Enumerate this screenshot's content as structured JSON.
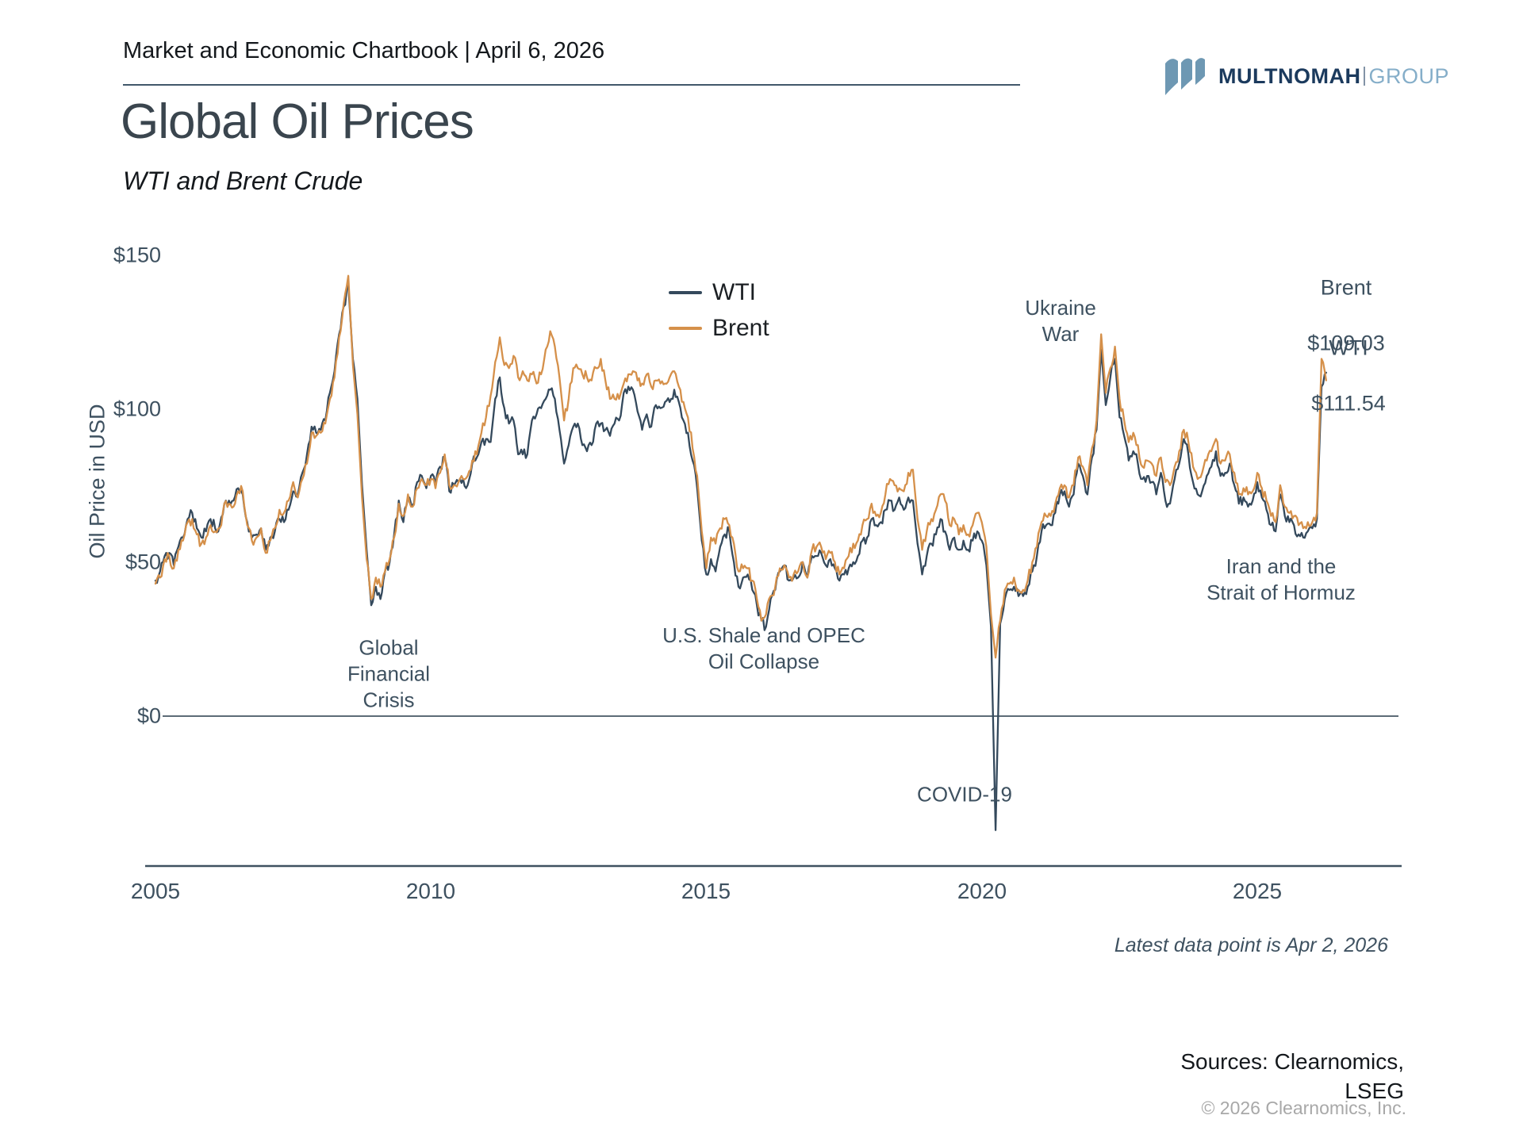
{
  "header": {
    "chartbook_label": "Market and Economic Chartbook | April 6, 2026"
  },
  "logo": {
    "name_bold": "MULTNOMAH",
    "name_light": "GROUP",
    "icon": "three-wave-strokes",
    "brand_navy": "#1b3a5d",
    "brand_steel_blue": "#6e98b3"
  },
  "title": "Global Oil Prices",
  "subtitle": "WTI and Brent Crude",
  "footnote": "Latest data point is Apr 2, 2026",
  "footer": {
    "sources_line1": "Sources: Clearnomics,",
    "sources_line2": "LSEG",
    "copyright": "© 2026 Clearnomics, Inc."
  },
  "chart_data": {
    "type": "line",
    "title": "Global Oil Prices",
    "subtitle": "WTI and Brent Crude",
    "ylabel": "Oil Price in USD",
    "xlabel": "",
    "grid": false,
    "legend_position": "top-center",
    "ylim": [
      -45,
      155
    ],
    "y_tick_values": [
      0,
      50,
      100,
      150
    ],
    "y_tick_labels": [
      "$0",
      "$50",
      "$100",
      "$150"
    ],
    "x_tick_labels": [
      "2005",
      "2010",
      "2015",
      "2020",
      "2025"
    ],
    "x_start": 2005.0,
    "x_step_years": 0.0833333,
    "frequency": "monthly (last point Apr 2, 2026)",
    "series": [
      {
        "name": "WTI",
        "color": "#34495c",
        "end_value": 111.54,
        "values": [
          44,
          47,
          52,
          53,
          49,
          55,
          58,
          64,
          66,
          61,
          58,
          60,
          64,
          61,
          62,
          69,
          70,
          70,
          74,
          72,
          63,
          58,
          59,
          61,
          54,
          58,
          60,
          64,
          63,
          67,
          73,
          72,
          79,
          85,
          94,
          92,
          93,
          96,
          105,
          112,
          124,
          133,
          140,
          116,
          103,
          75,
          54,
          36,
          42,
          38,
          47,
          50,
          59,
          70,
          63,
          71,
          68,
          76,
          78,
          74,
          78,
          75,
          81,
          84,
          73,
          75,
          76,
          77,
          75,
          82,
          84,
          89,
          90,
          89,
          103,
          110,
          100,
          95,
          96,
          85,
          85,
          85,
          96,
          98,
          100,
          103,
          106,
          103,
          93,
          82,
          88,
          94,
          95,
          88,
          86,
          88,
          95,
          95,
          93,
          91,
          95,
          96,
          105,
          107,
          106,
          99,
          93,
          98,
          94,
          101,
          100,
          102,
          102,
          106,
          102,
          96,
          92,
          83,
          74,
          57,
          46,
          51,
          47,
          55,
          59,
          60,
          50,
          42,
          45,
          46,
          41,
          36,
          31,
          29,
          38,
          41,
          47,
          49,
          44,
          45,
          45,
          50,
          45,
          52,
          52,
          53,
          49,
          51,
          48,
          44,
          46,
          48,
          50,
          52,
          57,
          58,
          64,
          62,
          63,
          67,
          70,
          67,
          71,
          67,
          71,
          70,
          56,
          46,
          52,
          56,
          59,
          64,
          60,
          54,
          58,
          54,
          57,
          54,
          57,
          60,
          57,
          49,
          29,
          -37,
          30,
          38,
          41,
          42,
          39,
          39,
          42,
          47,
          52,
          60,
          62,
          62,
          66,
          72,
          73,
          68,
          72,
          82,
          78,
          72,
          84,
          93,
          119,
          101,
          110,
          116,
          97,
          91,
          83,
          86,
          82,
          77,
          78,
          76,
          72,
          79,
          70,
          69,
          77,
          82,
          90,
          85,
          76,
          72,
          73,
          78,
          81,
          86,
          78,
          79,
          82,
          75,
          69,
          71,
          68,
          70,
          76,
          71,
          67,
          62,
          60,
          72,
          65,
          63,
          62,
          59,
          58,
          60,
          61,
          64,
          107,
          111.54
        ]
      },
      {
        "name": "Brent",
        "color": "#d5904a",
        "end_value": 109.03,
        "values": [
          43,
          45,
          51,
          52,
          48,
          54,
          57,
          63,
          64,
          59,
          56,
          58,
          62,
          60,
          61,
          69,
          69,
          68,
          73,
          73,
          62,
          57,
          58,
          61,
          53,
          57,
          61,
          67,
          66,
          70,
          76,
          71,
          77,
          82,
          92,
          91,
          92,
          95,
          103,
          110,
          123,
          134,
          143,
          114,
          98,
          71,
          51,
          38,
          45,
          42,
          47,
          51,
          58,
          69,
          65,
          72,
          68,
          74,
          77,
          75,
          77,
          74,
          79,
          85,
          75,
          75,
          76,
          77,
          78,
          83,
          85,
          92,
          97,
          104,
          115,
          123,
          114,
          113,
          117,
          110,
          112,
          109,
          111,
          108,
          111,
          119,
          125,
          120,
          110,
          96,
          103,
          113,
          113,
          111,
          110,
          109,
          113,
          116,
          109,
          103,
          103,
          103,
          108,
          111,
          112,
          109,
          108,
          111,
          107,
          109,
          108,
          108,
          110,
          112,
          107,
          102,
          97,
          87,
          78,
          60,
          48,
          58,
          56,
          61,
          64,
          62,
          56,
          47,
          48,
          48,
          44,
          38,
          31,
          33,
          39,
          42,
          48,
          49,
          45,
          46,
          47,
          50,
          45,
          54,
          55,
          55,
          51,
          53,
          50,
          46,
          48,
          52,
          56,
          57,
          62,
          64,
          69,
          65,
          66,
          72,
          77,
          75,
          74,
          73,
          79,
          80,
          64,
          54,
          60,
          64,
          67,
          72,
          70,
          62,
          64,
          59,
          62,
          59,
          62,
          66,
          63,
          55,
          33,
          19,
          31,
          41,
          43,
          45,
          41,
          41,
          44,
          50,
          55,
          63,
          65,
          65,
          69,
          74,
          75,
          71,
          75,
          84,
          81,
          75,
          87,
          96,
          124,
          105,
          113,
          120,
          103,
          96,
          89,
          92,
          88,
          81,
          83,
          82,
          78,
          84,
          76,
          75,
          81,
          86,
          93,
          89,
          81,
          77,
          79,
          83,
          86,
          90,
          82,
          83,
          85,
          79,
          72,
          74,
          72,
          73,
          79,
          74,
          70,
          65,
          63,
          75,
          68,
          66,
          65,
          62,
          61,
          63,
          63,
          66,
          116,
          109.03
        ]
      }
    ],
    "legend": {
      "entries": [
        "WTI",
        "Brent"
      ]
    },
    "annotations": [
      {
        "text": "Global\nFinancial\nCrisis",
        "x_year": 2009.2,
        "y_usd": 14
      },
      {
        "text": "U.S. Shale and OPEC\nOil Collapse",
        "x_year": 2016.0,
        "y_usd": 22
      },
      {
        "text": "COVID-19",
        "x_year": 2019.6,
        "y_usd": -25
      },
      {
        "text": "Ukraine\nWar",
        "x_year": 2021.4,
        "y_usd": 128
      },
      {
        "text": "Iran and the\nStrait of Hormuz",
        "x_year": 2025.4,
        "y_usd": 45
      }
    ],
    "end_labels": [
      {
        "label": "Brent",
        "value": "$109.03"
      },
      {
        "label": "WTI",
        "value": "$111.54"
      }
    ]
  }
}
